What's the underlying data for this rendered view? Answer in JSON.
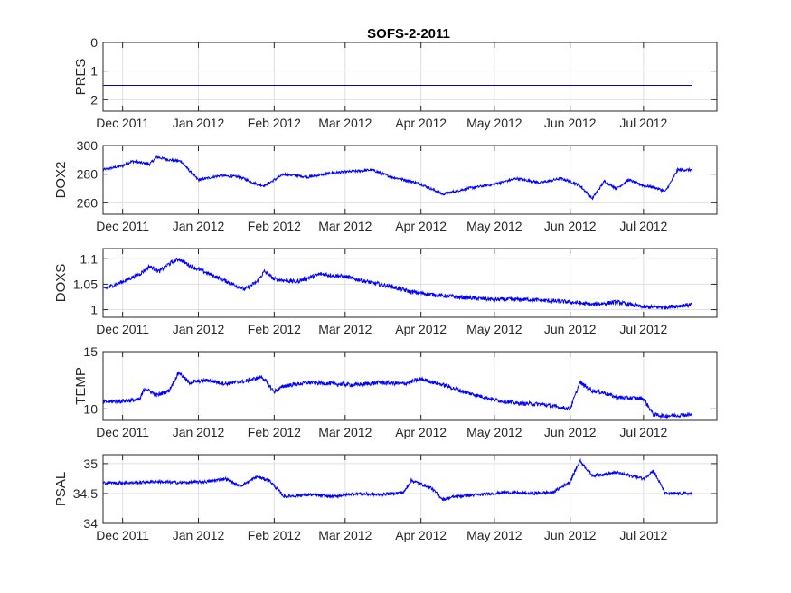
{
  "figure_title": "SOFS-2-2011",
  "chart_data": [
    {
      "type": "line",
      "ylabel": "PRES",
      "y_reversed": true,
      "ylim": [
        0,
        2.4
      ],
      "yticks": [
        0,
        1,
        2
      ],
      "ytick_labels": [
        "0",
        "1",
        "2"
      ],
      "xlim": [
        "2011-11-23",
        "2012-07-31"
      ],
      "xticks": [
        "2011-12-01",
        "2012-01-01",
        "2012-02-01",
        "2012-03-01",
        "2012-04-01",
        "2012-05-01",
        "2012-06-01",
        "2012-07-01"
      ],
      "xtick_labels": [
        "Dec 2011",
        "Jan 2012",
        "Feb 2012",
        "Mar 2012",
        "Apr 2012",
        "May 2012",
        "Jun 2012",
        "Jul 2012"
      ],
      "grid": true,
      "color": "#0000cc",
      "x": [
        "2011-11-23",
        "2012-07-21"
      ],
      "y": [
        1.5,
        1.5
      ]
    },
    {
      "type": "line",
      "ylabel": "DOX2",
      "ylim": [
        252,
        300
      ],
      "yticks": [
        260,
        280,
        300
      ],
      "ytick_labels": [
        "260",
        "280",
        "300"
      ],
      "xlim": [
        "2011-11-23",
        "2012-07-31"
      ],
      "xticks": [
        "2011-12-01",
        "2012-01-01",
        "2012-02-01",
        "2012-03-01",
        "2012-04-01",
        "2012-05-01",
        "2012-06-01",
        "2012-07-01"
      ],
      "xtick_labels": [
        "Dec 2011",
        "Jan 2012",
        "Feb 2012",
        "Mar 2012",
        "Apr 2012",
        "May 2012",
        "Jun 2012",
        "Jul 2012"
      ],
      "grid": true,
      "color": "#0000ff",
      "noise": 1.8,
      "x": [
        "2011-11-23",
        "2011-12-01",
        "2011-12-05",
        "2011-12-12",
        "2011-12-15",
        "2011-12-20",
        "2011-12-25",
        "2011-12-28",
        "2012-01-01",
        "2012-01-10",
        "2012-01-18",
        "2012-01-25",
        "2012-01-28",
        "2012-02-05",
        "2012-02-15",
        "2012-02-25",
        "2012-03-05",
        "2012-03-12",
        "2012-03-20",
        "2012-03-28",
        "2012-04-01",
        "2012-04-10",
        "2012-04-20",
        "2012-05-01",
        "2012-05-10",
        "2012-05-20",
        "2012-05-28",
        "2012-06-01",
        "2012-06-05",
        "2012-06-10",
        "2012-06-15",
        "2012-06-20",
        "2012-06-25",
        "2012-07-01",
        "2012-07-05",
        "2012-07-10",
        "2012-07-15",
        "2012-07-21"
      ],
      "y": [
        283,
        286,
        289,
        287,
        292,
        290,
        289,
        283,
        276,
        279,
        278,
        273,
        272,
        280,
        278,
        281,
        282,
        283,
        278,
        275,
        273,
        266,
        270,
        273,
        277,
        274,
        277,
        275,
        272,
        263,
        275,
        270,
        276,
        272,
        271,
        268,
        283,
        283
      ]
    },
    {
      "type": "line",
      "ylabel": "DOXS",
      "ylim": [
        0.985,
        1.12
      ],
      "yticks": [
        1,
        1.05,
        1.1
      ],
      "ytick_labels": [
        "1",
        "1.05",
        "1.1"
      ],
      "xlim": [
        "2011-11-23",
        "2012-07-31"
      ],
      "xticks": [
        "2011-12-01",
        "2012-01-01",
        "2012-02-01",
        "2012-03-01",
        "2012-04-01",
        "2012-05-01",
        "2012-06-01",
        "2012-07-01"
      ],
      "xtick_labels": [
        "Dec 2011",
        "Jan 2012",
        "Feb 2012",
        "Mar 2012",
        "Apr 2012",
        "May 2012",
        "Jun 2012",
        "Jul 2012"
      ],
      "grid": true,
      "color": "#0000ff",
      "noise": 0.008,
      "x": [
        "2011-11-23",
        "2011-12-01",
        "2011-12-08",
        "2011-12-12",
        "2011-12-16",
        "2011-12-20",
        "2011-12-24",
        "2011-12-29",
        "2012-01-08",
        "2012-01-15",
        "2012-01-20",
        "2012-01-25",
        "2012-01-28",
        "2012-02-01",
        "2012-02-10",
        "2012-02-20",
        "2012-03-01",
        "2012-03-10",
        "2012-03-20",
        "2012-03-28",
        "2012-04-05",
        "2012-04-15",
        "2012-05-01",
        "2012-05-15",
        "2012-06-01",
        "2012-06-10",
        "2012-06-20",
        "2012-07-01",
        "2012-07-10",
        "2012-07-21"
      ],
      "y": [
        1.04,
        1.055,
        1.07,
        1.085,
        1.075,
        1.09,
        1.1,
        1.085,
        1.065,
        1.05,
        1.04,
        1.055,
        1.075,
        1.06,
        1.055,
        1.07,
        1.065,
        1.055,
        1.045,
        1.035,
        1.03,
        1.025,
        1.02,
        1.02,
        1.015,
        1.01,
        1.015,
        1.005,
        1.005,
        1.01
      ]
    },
    {
      "type": "line",
      "ylabel": "TEMP",
      "ylim": [
        9,
        15
      ],
      "yticks": [
        10,
        15
      ],
      "ytick_labels": [
        "10",
        "15"
      ],
      "xlim": [
        "2011-11-23",
        "2012-07-31"
      ],
      "xticks": [
        "2011-12-01",
        "2012-01-01",
        "2012-02-01",
        "2012-03-01",
        "2012-04-01",
        "2012-05-01",
        "2012-06-01",
        "2012-07-01"
      ],
      "xtick_labels": [
        "Dec 2011",
        "Jan 2012",
        "Feb 2012",
        "Mar 2012",
        "Apr 2012",
        "May 2012",
        "Jun 2012",
        "Jul 2012"
      ],
      "grid": true,
      "color": "#0000ff",
      "noise": 0.35,
      "x": [
        "2011-11-23",
        "2011-12-01",
        "2011-12-08",
        "2011-12-10",
        "2011-12-15",
        "2011-12-20",
        "2011-12-24",
        "2011-12-28",
        "2012-01-05",
        "2012-01-12",
        "2012-01-20",
        "2012-01-27",
        "2012-02-01",
        "2012-02-05",
        "2012-02-15",
        "2012-02-25",
        "2012-03-05",
        "2012-03-15",
        "2012-03-25",
        "2012-04-01",
        "2012-04-10",
        "2012-04-20",
        "2012-05-01",
        "2012-05-10",
        "2012-05-20",
        "2012-06-01",
        "2012-06-05",
        "2012-06-10",
        "2012-06-15",
        "2012-06-20",
        "2012-07-01",
        "2012-07-05",
        "2012-07-10",
        "2012-07-21"
      ],
      "y": [
        10.6,
        10.7,
        10.8,
        11.8,
        11.2,
        11.6,
        13.2,
        12.3,
        12.5,
        12.2,
        12.4,
        12.8,
        11.5,
        12.0,
        12.3,
        12.2,
        12.1,
        12.3,
        12.2,
        12.6,
        12.1,
        11.4,
        10.8,
        10.5,
        10.4,
        10.0,
        12.3,
        11.6,
        11.4,
        11.0,
        10.9,
        9.5,
        9.4,
        9.5
      ]
    },
    {
      "type": "line",
      "ylabel": "PSAL",
      "ylim": [
        34,
        35.15
      ],
      "yticks": [
        34,
        34.5,
        35
      ],
      "ytick_labels": [
        "34",
        "34.5",
        "35"
      ],
      "xlim": [
        "2011-11-23",
        "2012-07-31"
      ],
      "xticks": [
        "2011-12-01",
        "2012-01-01",
        "2012-02-01",
        "2012-03-01",
        "2012-04-01",
        "2012-05-01",
        "2012-06-01",
        "2012-07-01"
      ],
      "xtick_labels": [
        "Dec 2011",
        "Jan 2012",
        "Feb 2012",
        "Mar 2012",
        "Apr 2012",
        "May 2012",
        "Jun 2012",
        "Jul 2012"
      ],
      "grid": true,
      "color": "#0000ff",
      "noise": 0.05,
      "x": [
        "2011-11-23",
        "2011-12-05",
        "2011-12-15",
        "2011-12-25",
        "2012-01-05",
        "2012-01-12",
        "2012-01-18",
        "2012-01-25",
        "2012-01-30",
        "2012-02-05",
        "2012-02-15",
        "2012-02-25",
        "2012-03-05",
        "2012-03-15",
        "2012-03-25",
        "2012-03-28",
        "2012-04-05",
        "2012-04-10",
        "2012-04-15",
        "2012-04-25",
        "2012-05-05",
        "2012-05-15",
        "2012-05-25",
        "2012-06-01",
        "2012-06-05",
        "2012-06-10",
        "2012-06-20",
        "2012-07-01",
        "2012-07-05",
        "2012-07-10",
        "2012-07-21"
      ],
      "y": [
        34.68,
        34.68,
        34.7,
        34.68,
        34.7,
        34.75,
        34.62,
        34.78,
        34.72,
        34.45,
        34.48,
        34.45,
        34.5,
        34.48,
        34.52,
        34.72,
        34.6,
        34.4,
        34.45,
        34.48,
        34.52,
        34.5,
        34.52,
        34.7,
        35.05,
        34.8,
        34.85,
        34.75,
        34.88,
        34.5,
        34.5
      ]
    }
  ]
}
